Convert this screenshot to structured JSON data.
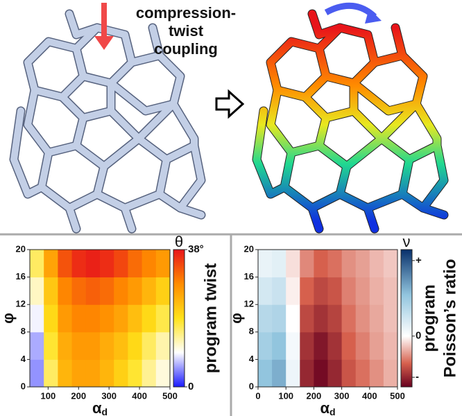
{
  "illustration": {
    "caption_lines": [
      "compression-",
      "twist",
      "coupling"
    ]
  },
  "chart_data": [
    {
      "type": "heatmap",
      "colorbar_label": "θ",
      "side_label": [
        "program twist"
      ],
      "xlabel": "α",
      "xlabel_sub": "d",
      "ylabel": "φ",
      "xlim": [
        40,
        500
      ],
      "ylim": [
        0,
        20
      ],
      "xticks": [
        100,
        200,
        300,
        400,
        500
      ],
      "yticks": [
        0,
        4,
        8,
        12,
        16,
        20
      ],
      "x_edges": [
        40,
        86,
        132,
        178,
        224,
        270,
        316,
        362,
        408,
        454,
        500
      ],
      "y_edges": [
        0,
        4,
        8,
        12,
        16,
        20
      ],
      "z": [
        [
          5,
          16,
          24,
          26,
          26,
          24,
          21,
          18,
          14,
          11
        ],
        [
          6,
          18,
          25,
          27,
          27,
          25,
          23,
          20,
          16,
          13
        ],
        [
          9,
          20,
          27,
          29,
          29,
          28,
          26,
          23,
          20,
          17
        ],
        [
          12,
          22,
          29,
          31,
          32,
          31,
          29,
          27,
          24,
          21
        ],
        [
          16,
          26,
          33,
          36,
          37,
          36,
          34,
          31,
          29,
          27
        ]
      ],
      "clim": [
        0,
        38
      ],
      "cticks": [
        {
          "value": 38,
          "label": "38°"
        },
        0
      ],
      "colormap": [
        [
          0,
          "#1a1aff"
        ],
        [
          9.5,
          "#ffffff"
        ],
        [
          19,
          "#ffe21a"
        ],
        [
          28.5,
          "#ff8c00"
        ],
        [
          38,
          "#e8141a"
        ]
      ]
    },
    {
      "type": "heatmap",
      "colorbar_label": "ν",
      "side_label": [
        "program",
        "Poisson’s ratio"
      ],
      "xlabel": "α",
      "xlabel_sub": "d",
      "ylabel": "φ",
      "xlim": [
        0,
        500
      ],
      "ylim": [
        0,
        20
      ],
      "xticks": [
        0,
        100,
        200,
        300,
        400,
        500
      ],
      "yticks": [
        0,
        4,
        8,
        12,
        16,
        20
      ],
      "x_edges": [
        0,
        50,
        100,
        150,
        200,
        250,
        300,
        350,
        400,
        450,
        500
      ],
      "y_edges": [
        0,
        4,
        8,
        12,
        16,
        20
      ],
      "z": [
        [
          0.3,
          0.35,
          0.05,
          -0.3,
          -0.35,
          -0.3,
          -0.22,
          -0.18,
          -0.14,
          -0.1
        ],
        [
          0.25,
          0.3,
          0.03,
          -0.28,
          -0.33,
          -0.28,
          -0.2,
          -0.16,
          -0.12,
          -0.09
        ],
        [
          0.2,
          0.22,
          0.0,
          -0.24,
          -0.28,
          -0.25,
          -0.18,
          -0.14,
          -0.11,
          -0.08
        ],
        [
          0.12,
          0.15,
          -0.02,
          -0.2,
          -0.24,
          -0.22,
          -0.16,
          -0.13,
          -0.1,
          -0.08
        ],
        [
          0.06,
          0.08,
          -0.04,
          -0.15,
          -0.2,
          -0.18,
          -0.14,
          -0.12,
          -0.09,
          -0.07
        ]
      ],
      "clim": [
        -0.37,
        0.63
      ],
      "cticks": [
        {
          "value": 0.55,
          "label": "+"
        },
        0,
        {
          "value": -0.3,
          "label": "-"
        }
      ],
      "colormap": [
        [
          -0.37,
          "#67001f"
        ],
        [
          -0.2,
          "#d6604d"
        ],
        [
          0,
          "#ffffff"
        ],
        [
          0.3,
          "#92c5de"
        ],
        [
          0.63,
          "#08306b"
        ]
      ]
    }
  ]
}
